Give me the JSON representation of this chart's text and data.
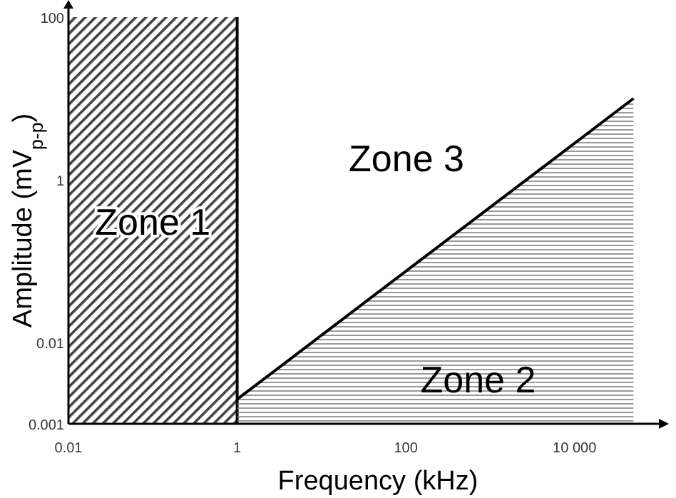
{
  "chart_data": {
    "type": "area",
    "xlabel": "Frequency (kHz)",
    "ylabel": "Amplitude (mV$_{p-p}$)",
    "log": "xy",
    "xlim": [
      0.01,
      100000
    ],
    "ylim": [
      0.001,
      100
    ],
    "xticks": [
      0.01,
      1,
      100,
      {
        "value": 10000,
        "label": "10 000"
      }
    ],
    "yticks": [
      0.001,
      0.01,
      1,
      100
    ],
    "series": [
      {
        "name": "Zone 2",
        "color": "#808080",
        "x": [
          1,
          50000
        ],
        "values": [
          0.002,
          10
        ]
      }
    ],
    "bands": [
      {
        "axis": "x",
        "from": 0.01,
        "to": 1,
        "label": "Zone 1",
        "color": "#404040"
      }
    ],
    "annotations": [
      "Zone 3"
    ]
  }
}
